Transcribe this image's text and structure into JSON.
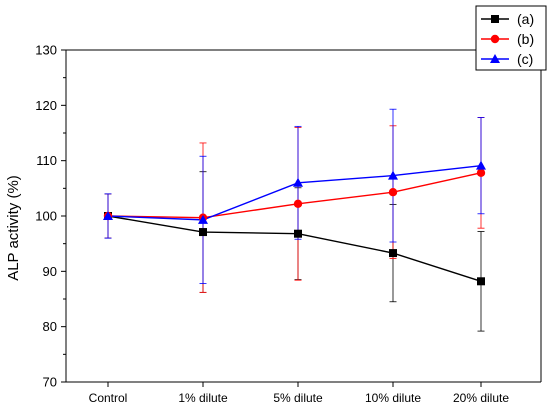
{
  "chart_data": {
    "type": "line",
    "title": "",
    "xlabel": "",
    "ylabel": "ALP activity (%)",
    "ylim": [
      70,
      130
    ],
    "yticks": [
      70,
      80,
      90,
      100,
      110,
      120,
      130
    ],
    "grid": false,
    "legend_position": "top-right",
    "categories": [
      "Control",
      "1% dilute",
      "5% dilute",
      "10% dilute",
      "20% dilute"
    ],
    "series": [
      {
        "name": "(a)",
        "color": "#000000",
        "marker": "square",
        "values": [
          100.0,
          97.1,
          96.8,
          93.3,
          88.2
        ],
        "error": [
          4.0,
          10.9,
          8.3,
          8.8,
          9.0
        ]
      },
      {
        "name": "(b)",
        "color": "#ff0000",
        "marker": "circle",
        "values": [
          100.0,
          99.7,
          102.2,
          104.3,
          107.8
        ],
        "error": [
          4.0,
          13.5,
          13.8,
          12.0,
          10.0
        ]
      },
      {
        "name": "(c)",
        "color": "#0000ff",
        "marker": "triangle",
        "values": [
          100.0,
          99.3,
          106.0,
          107.3,
          109.1
        ],
        "error": [
          4.0,
          11.5,
          10.2,
          12.0,
          8.7
        ]
      }
    ]
  }
}
